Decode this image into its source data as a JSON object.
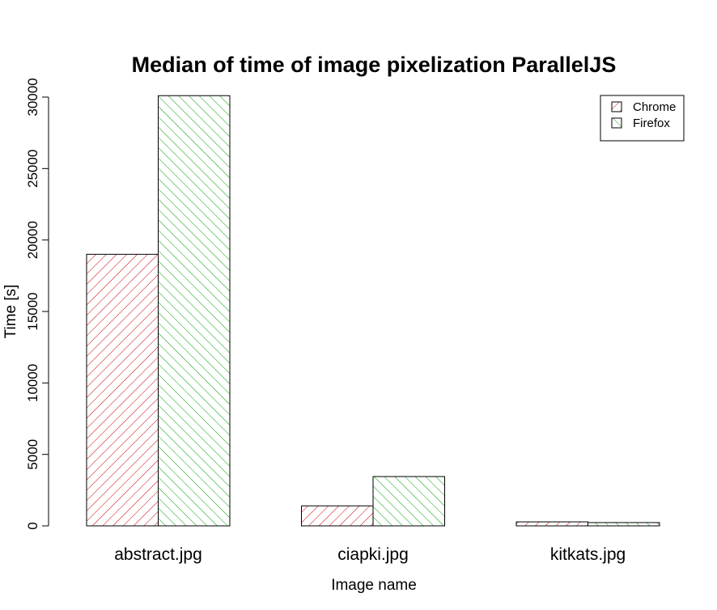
{
  "chart_data": {
    "type": "bar",
    "title": "Median of time of image pixelization ParallelJS",
    "xlabel": "Image name",
    "ylabel": "Time [s]",
    "categories": [
      "abstract.jpg",
      "ciapki.jpg",
      "kitkats.jpg"
    ],
    "series": [
      {
        "name": "Chrome",
        "values": [
          19000,
          1400,
          280
        ],
        "color": "#cc0000",
        "pattern": "hatch-45"
      },
      {
        "name": "Firefox",
        "values": [
          30100,
          3450,
          230
        ],
        "color": "#00a000",
        "pattern": "hatch-135"
      }
    ],
    "ylim": [
      0,
      30000
    ],
    "yticks": [
      "0",
      "5000",
      "10000",
      "15000",
      "20000",
      "25000",
      "30000"
    ],
    "grid": false,
    "legend_position": "top-right"
  }
}
